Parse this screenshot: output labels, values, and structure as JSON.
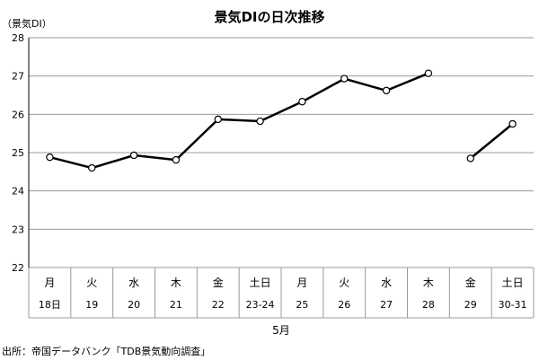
{
  "chart_data": {
    "type": "line",
    "title": "景気DIの日次推移",
    "ylabel": "（景気DI）",
    "ylim": [
      22,
      28
    ],
    "yticks": [
      22,
      23,
      24,
      25,
      26,
      27,
      28
    ],
    "grid": true,
    "categories": [
      {
        "weekday": "月",
        "date": "18日"
      },
      {
        "weekday": "火",
        "date": "19"
      },
      {
        "weekday": "水",
        "date": "20"
      },
      {
        "weekday": "木",
        "date": "21"
      },
      {
        "weekday": "金",
        "date": "22"
      },
      {
        "weekday": "土日",
        "date": "23-24"
      },
      {
        "weekday": "月",
        "date": "25"
      },
      {
        "weekday": "火",
        "date": "26"
      },
      {
        "weekday": "水",
        "date": "27"
      },
      {
        "weekday": "木",
        "date": "28"
      },
      {
        "weekday": "金",
        "date": "29"
      },
      {
        "weekday": "土日",
        "date": "30-31"
      }
    ],
    "segments": [
      [
        0,
        9
      ],
      [
        10,
        11
      ]
    ],
    "values": [
      24.88,
      24.6,
      24.93,
      24.81,
      25.87,
      25.82,
      26.33,
      26.93,
      26.62,
      27.07,
      24.85,
      25.75
    ],
    "month_label": "5月",
    "line_color": "#000000",
    "marker_fill": "#ffffff",
    "grid_color": "#9a9a9a"
  },
  "source": "出所：帝国データバンク「TDB景気動向調査」"
}
